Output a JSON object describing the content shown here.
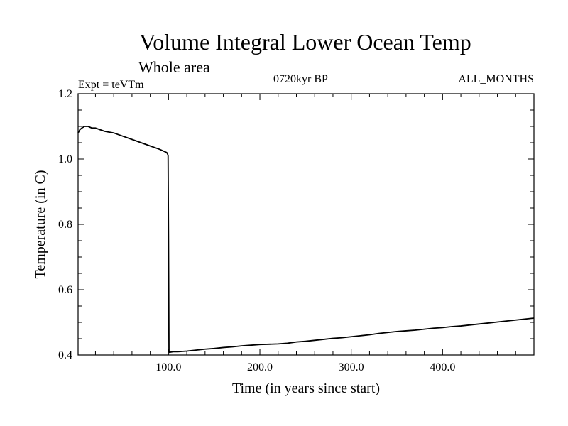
{
  "chart_data": {
    "type": "line",
    "title": "Volume Integral Lower Ocean Temp",
    "subtitle": "Whole area",
    "annotations": {
      "expt": "Expt = teVTm",
      "period": "0720kyr BP",
      "months": "ALL_MONTHS"
    },
    "xlabel": "Time (in years since start)",
    "ylabel": "Temperature (in C)",
    "xlim": [
      1,
      500
    ],
    "ylim": [
      0.4,
      1.2
    ],
    "x_ticks": [
      100,
      200,
      300,
      400
    ],
    "x_tick_labels": [
      "100.0",
      "200.0",
      "300.0",
      "400.0"
    ],
    "y_ticks": [
      0.4,
      0.6,
      0.8,
      1.0,
      1.2
    ],
    "y_tick_labels": [
      "0.4",
      "0.6",
      "0.8",
      "1.0",
      "1.2"
    ],
    "grid": false,
    "line_color": "#000000",
    "series": [
      {
        "x": [
          1,
          3,
          5,
          8,
          12,
          16,
          20,
          25,
          30,
          40,
          50,
          60,
          70,
          80,
          90,
          98,
          99,
          99.5,
          100,
          100.5,
          101,
          105,
          110,
          120,
          130,
          140,
          150,
          160,
          170,
          180,
          190,
          200,
          210,
          220,
          230,
          240,
          250,
          260,
          270,
          280,
          290,
          300,
          310,
          320,
          330,
          340,
          350,
          360,
          370,
          380,
          390,
          400,
          410,
          420,
          430,
          440,
          450,
          460,
          470,
          480,
          490,
          500
        ],
        "y": [
          1.08,
          1.09,
          1.095,
          1.1,
          1.1,
          1.095,
          1.095,
          1.09,
          1.085,
          1.08,
          1.07,
          1.06,
          1.05,
          1.04,
          1.03,
          1.02,
          1.015,
          1.01,
          0.75,
          0.41,
          0.408,
          0.41,
          0.41,
          0.412,
          0.415,
          0.418,
          0.42,
          0.423,
          0.425,
          0.428,
          0.43,
          0.432,
          0.433,
          0.434,
          0.436,
          0.44,
          0.442,
          0.445,
          0.448,
          0.451,
          0.453,
          0.456,
          0.459,
          0.462,
          0.466,
          0.469,
          0.472,
          0.474,
          0.476,
          0.479,
          0.482,
          0.484,
          0.487,
          0.489,
          0.492,
          0.495,
          0.498,
          0.501,
          0.504,
          0.507,
          0.51,
          0.513
        ]
      }
    ]
  }
}
